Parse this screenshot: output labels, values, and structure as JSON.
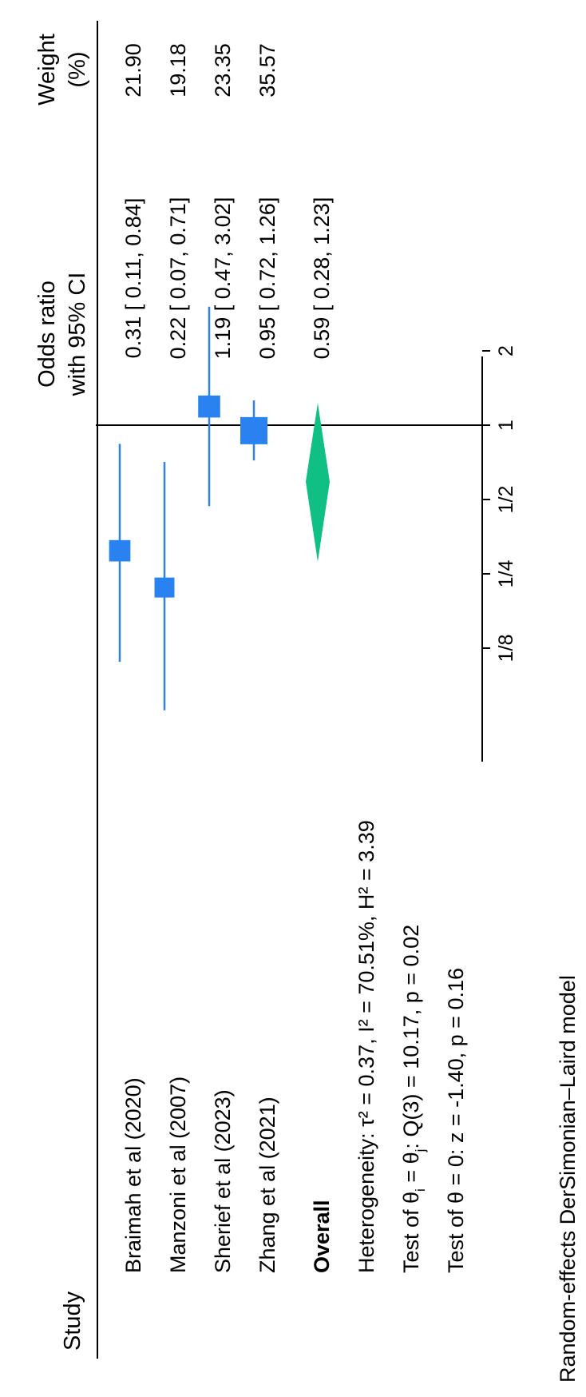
{
  "chart_data": {
    "type": "forest",
    "headers": {
      "study": "Study",
      "or_line1": "Odds ratio",
      "or_line2": "with 95% CI",
      "weight_line1": "Weight",
      "weight_line2": "(%)"
    },
    "studies": [
      {
        "label": "Braimah et al (2020)",
        "or": 0.31,
        "lo": 0.11,
        "hi": 0.84,
        "ci_text": "0.31 [ 0.11,  0.84]",
        "weight": "21.90"
      },
      {
        "label": "Manzoni et al (2007)",
        "or": 0.22,
        "lo": 0.07,
        "hi": 0.71,
        "ci_text": "0.22 [ 0.07,  0.71]",
        "weight": "19.18"
      },
      {
        "label": "Sherief et al (2023)",
        "or": 1.19,
        "lo": 0.47,
        "hi": 3.02,
        "ci_text": "1.19 [ 0.47,  3.02]",
        "weight": "23.35"
      },
      {
        "label": "Zhang et al (2021)",
        "or": 0.95,
        "lo": 0.72,
        "hi": 1.26,
        "ci_text": "0.95 [ 0.72,  1.26]",
        "weight": "35.57"
      }
    ],
    "overall": {
      "label": "Overall",
      "or": 0.59,
      "lo": 0.28,
      "hi": 1.23,
      "ci_text": "0.59 [ 0.28,  1.23]"
    },
    "axis": {
      "scale": "log",
      "ticks": [
        0.125,
        0.25,
        0.5,
        1,
        2
      ],
      "tick_labels": [
        "1/8",
        "1/4",
        "1/2",
        "1",
        "2"
      ],
      "null_line": 1
    },
    "footnotes": {
      "heterogeneity": "Heterogeneity: τ² = 0.37, I² = 70.51%, H² = 3.39",
      "q_prefix": "Test of θ",
      "q_sub_i": "i",
      "q_mid": " = θ",
      "q_sub_j": "j",
      "q_suffix": ": Q(3) = 10.17, p = 0.02",
      "z_test": "Test of θ = 0: z = -1.40, p = 0.16",
      "model": "Random-effects DerSimonian–Laird model"
    },
    "colors": {
      "study_marker": "#2a82f0",
      "ci_line": "#2a82f0",
      "overall_diamond": "#0fbf83"
    }
  }
}
